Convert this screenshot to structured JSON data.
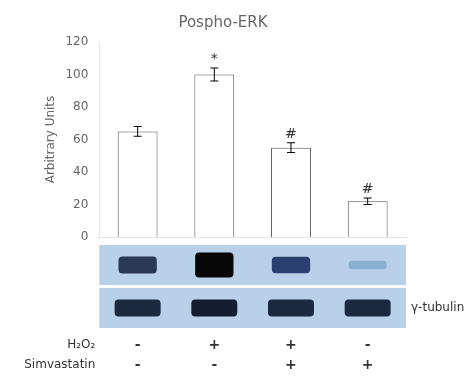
{
  "chart_data": {
    "type": "bar",
    "title": "Pospho-ERK",
    "ylabel": "Arbitrary Units",
    "categories": [
      null,
      null,
      null,
      null
    ],
    "values": [
      65,
      100,
      55,
      22
    ],
    "errors": [
      3,
      4,
      3,
      2
    ],
    "color": "#ffffff",
    "edge_color": "#555555",
    "ylim": [
      0,
      120
    ],
    "yticks": [
      0,
      20,
      40,
      60,
      80,
      100,
      120
    ],
    "grid": false,
    "tick_labels": "y",
    "annotations": [
      {
        "text": "*",
        "x": 1,
        "y": 105
      },
      {
        "text": "#",
        "x": 2,
        "y": 59
      },
      {
        "text": "#",
        "x": 3,
        "y": 25
      }
    ],
    "blots": [
      {
        "background": "#b8d0e8",
        "colors": [
          "#2a3a55",
          "#080808",
          "#2a4070",
          "#8ab0d0"
        ],
        "intensities": [
          0.62,
          1.0,
          0.6,
          0.22
        ]
      },
      {
        "name": "γ-tubulin",
        "background": "#b8d0e8",
        "colors": [
          "#1a2840",
          "#151e30",
          "#1a2840",
          "#1a2840"
        ]
      }
    ],
    "conditions": [
      {
        "name": "H₂O₂",
        "labels": [
          "-",
          "+",
          "+",
          "-"
        ]
      },
      {
        "name": "Simvastatin",
        "labels": [
          "-",
          "-",
          "+",
          "+"
        ]
      }
    ]
  }
}
